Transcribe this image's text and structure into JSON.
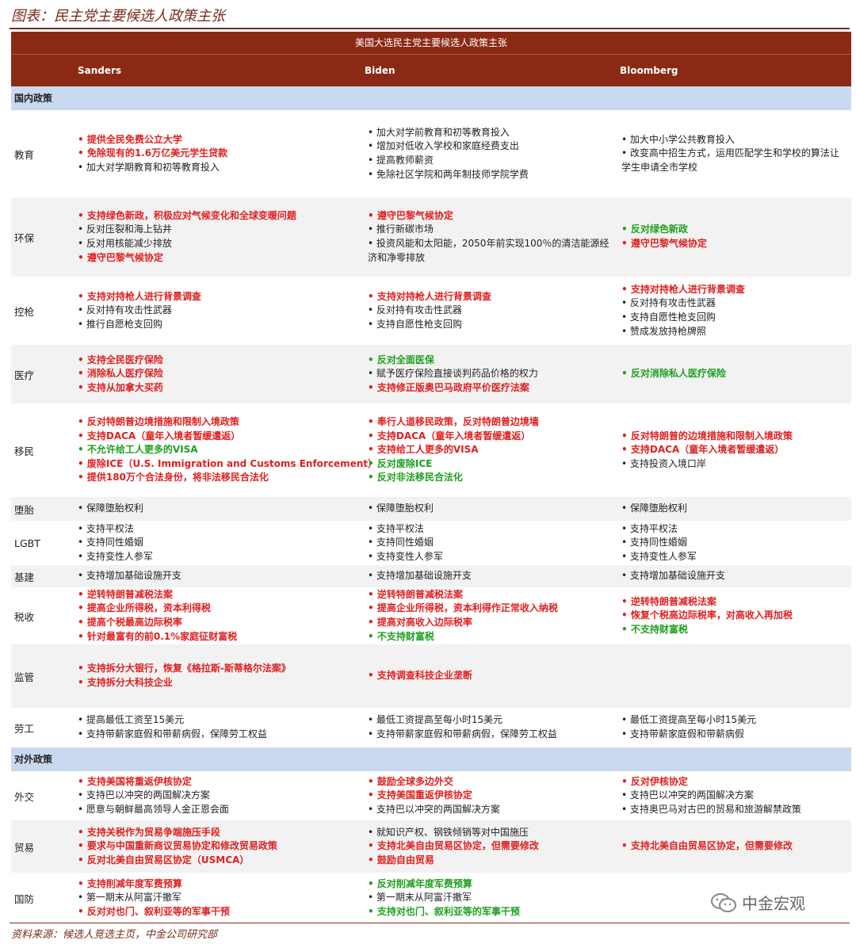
{
  "figure_title": "图表：民主党主要候选人政策主张",
  "table_title": "美国大选民主党主要候选人政策主张",
  "columns": [
    "Sanders",
    "Biden",
    "Bloomberg"
  ],
  "sections": [
    {
      "name": "国内政策",
      "rows": [
        {
          "label": "教育",
          "h": 110,
          "cells": [
            [
              {
                "t": "提供全民免费公立大学",
                "c": "red"
              },
              {
                "t": "免除现有的1.6万亿美元学生贷款",
                "c": "red"
              },
              {
                "t": "加大对学期教育和初等教育投入",
                "c": "black"
              }
            ],
            [
              {
                "t": "加大对学前教育和初等教育投入",
                "c": "black"
              },
              {
                "t": "增加对低收入学校和家庭经费支出",
                "c": "black"
              },
              {
                "t": "提高教师薪资",
                "c": "black"
              },
              {
                "t": "免除社区学院和两年制技师学院学费",
                "c": "black"
              }
            ],
            [
              {
                "t": "加大中小学公共教育投入",
                "c": "black"
              },
              {
                "t": "改变高中招生方式，运用匹配学生和学校的算法让学生申请全市学校",
                "c": "black",
                "w": 1
              }
            ]
          ]
        },
        {
          "label": "环保",
          "h": 100,
          "cells": [
            [
              {
                "t": "支持绿色新政，积极应对气候变化和全球变暖问题",
                "c": "red"
              },
              {
                "t": "反对压裂和海上钻井",
                "c": "black"
              },
              {
                "t": "反对用核能减少排放",
                "c": "black"
              },
              {
                "t": "遵守巴黎气候协定",
                "c": "red"
              }
            ],
            [
              {
                "t": "遵守巴黎气候协定",
                "c": "red"
              },
              {
                "t": "推行新碳市场",
                "c": "black"
              },
              {
                "t": "投资风能和太阳能，2050年前实现100％的清洁能源经济和净零排放",
                "c": "black",
                "w": 1
              }
            ],
            [
              {
                "t": "反对绿色新政",
                "c": "green"
              },
              {
                "t": "遵守巴黎气候协定",
                "c": "red"
              }
            ]
          ]
        },
        {
          "label": "控枪",
          "h": 86,
          "cells": [
            [
              {
                "t": "支持对持枪人进行背景调查",
                "c": "red"
              },
              {
                "t": "反对持有攻击性武器",
                "c": "black"
              },
              {
                "t": "推行自愿枪支回购",
                "c": "black"
              }
            ],
            [
              {
                "t": "支持对持枪人进行背景调查",
                "c": "red"
              },
              {
                "t": "反对持有攻击性武器",
                "c": "black"
              },
              {
                "t": "支持自愿性枪支回购",
                "c": "black"
              }
            ],
            [
              {
                "t": "支持对持枪人进行背景调查",
                "c": "red"
              },
              {
                "t": "反对持有攻击性武器",
                "c": "black"
              },
              {
                "t": "支持自愿性枪支回购",
                "c": "black"
              },
              {
                "t": "赞成发放持枪牌照",
                "c": "black"
              }
            ]
          ]
        },
        {
          "label": "医疗",
          "h": 74,
          "cells": [
            [
              {
                "t": "支持全民医疗保险",
                "c": "red"
              },
              {
                "t": "消除私人医疗保险",
                "c": "red"
              },
              {
                "t": "支持从加拿大买药",
                "c": "red"
              }
            ],
            [
              {
                "t": "反对全面医保",
                "c": "green"
              },
              {
                "t": "赋予医疗保险直接谈判药品价格的权力",
                "c": "black"
              },
              {
                "t": "支持修正版奥巴马政府平价医疗法案",
                "c": "red"
              }
            ],
            [
              {
                "t": "反对消除私人医疗保险",
                "c": "green"
              }
            ]
          ]
        },
        {
          "label": "移民",
          "h": 118,
          "cells": [
            [
              {
                "t": "反对特朗普边境措施和限制入境政策",
                "c": "red"
              },
              {
                "t": "支持DACA（童年入境者暂缓遣返）",
                "c": "red"
              },
              {
                "t": "不允许给工人更多的VISA",
                "c": "green"
              },
              {
                "t": "废除ICE（U.S. Immigration and Customs Enforcement）",
                "c": "red"
              },
              {
                "t": "提供180万个合法身份，将非法移民合法化",
                "c": "red"
              }
            ],
            [
              {
                "t": "奉行人道移民政策，反对特朗普边境墙",
                "c": "red"
              },
              {
                "t": "支持DACA（童年入境者暂缓遣返）",
                "c": "red"
              },
              {
                "t": "支持给工人更多的VISA",
                "c": "red"
              },
              {
                "t": "反对废除ICE",
                "c": "green"
              },
              {
                "t": "反对非法移民合法化",
                "c": "green"
              }
            ],
            [
              {
                "t": "反对特朗普的边境措施和限制入境政策",
                "c": "red"
              },
              {
                "t": "支持DACA（童年入境者暂缓遣返）",
                "c": "red"
              },
              {
                "t": "支持投资入境口岸",
                "c": "black"
              }
            ]
          ]
        },
        {
          "label": "堕胎",
          "h": 30,
          "cells": [
            [
              {
                "t": "保障堕胎权利",
                "c": "black"
              }
            ],
            [
              {
                "t": "保障堕胎权利",
                "c": "black"
              }
            ],
            [
              {
                "t": "保障堕胎权利",
                "c": "black"
              }
            ]
          ]
        },
        {
          "label": "LGBT",
          "h": 56,
          "cells": [
            [
              {
                "t": "支持平权法",
                "c": "black"
              },
              {
                "t": "支持同性婚姻",
                "c": "black"
              },
              {
                "t": "支持变性人参军",
                "c": "black"
              }
            ],
            [
              {
                "t": "支持平权法",
                "c": "black"
              },
              {
                "t": "支持同性婚姻",
                "c": "black"
              },
              {
                "t": "支持变性人参军",
                "c": "black"
              }
            ],
            [
              {
                "t": "支持平权法",
                "c": "black"
              },
              {
                "t": "支持同性婚姻",
                "c": "black"
              },
              {
                "t": "支持变性人参军",
                "c": "black"
              }
            ]
          ]
        },
        {
          "label": "基建",
          "h": 28,
          "cells": [
            [
              {
                "t": "支持增加基础设施开支",
                "c": "black"
              }
            ],
            [
              {
                "t": "支持增加基础设施开支",
                "c": "black"
              }
            ],
            [
              {
                "t": "支持增加基础设施开支",
                "c": "black"
              }
            ]
          ]
        },
        {
          "label": "税收",
          "h": 72,
          "cells": [
            [
              {
                "t": "逆转特朗普减税法案",
                "c": "red"
              },
              {
                "t": "提高企业所得税，资本利得税",
                "c": "red"
              },
              {
                "t": "提高个税最高边际税率",
                "c": "red"
              },
              {
                "t": "针对最富有的前0.1%家庭征财富税",
                "c": "red"
              }
            ],
            [
              {
                "t": "逆转特朗普减税法案",
                "c": "red"
              },
              {
                "t": "提高企业所得税，资本利得作正常收入纳税",
                "c": "red"
              },
              {
                "t": "提高对高收入边际税率",
                "c": "red"
              },
              {
                "t": "不支持财富税",
                "c": "green"
              }
            ],
            [
              {
                "t": "逆转特朗普减税法案",
                "c": "red"
              },
              {
                "t": "恢复个税高边际税率，对高收入再加税",
                "c": "red"
              },
              {
                "t": "不支持财富税",
                "c": "green"
              }
            ]
          ]
        },
        {
          "label": "监管",
          "h": 80,
          "cells": [
            [
              {
                "t": "支持拆分大银行，恢复《格拉斯-斯蒂格尔法案》",
                "c": "red"
              },
              {
                "t": "支持拆分大科技企业",
                "c": "red"
              }
            ],
            [
              {
                "t": "支持调查科技企业垄断",
                "c": "red"
              }
            ],
            []
          ]
        },
        {
          "label": "劳工",
          "h": 50,
          "cells": [
            [
              {
                "t": "提高最低工资至15美元",
                "c": "black"
              },
              {
                "t": "支持带薪家庭假和带薪病假，保障劳工权益",
                "c": "black"
              }
            ],
            [
              {
                "t": "最低工资提高至每小时15美元",
                "c": "black"
              },
              {
                "t": "支持带薪家庭假和带薪病假，保障劳工权益",
                "c": "black"
              }
            ],
            [
              {
                "t": "最低工资提高至每小时15美元",
                "c": "black"
              },
              {
                "t": "支持带薪家庭假和带薪病假",
                "c": "black"
              }
            ]
          ]
        }
      ]
    },
    {
      "name": "对外政策",
      "rows": [
        {
          "label": "外交",
          "h": 62,
          "cells": [
            [
              {
                "t": "支持美国将重返伊核协定",
                "c": "red"
              },
              {
                "t": "支持巴以冲突的两国解决方案",
                "c": "black"
              },
              {
                "t": "愿意与朝鲜最高领导人金正恩会面",
                "c": "black"
              }
            ],
            [
              {
                "t": "鼓励全球多边外交",
                "c": "red"
              },
              {
                "t": "支持美国重返伊核协定",
                "c": "red"
              },
              {
                "t": "支持巴以冲突的两国解决方案",
                "c": "black"
              }
            ],
            [
              {
                "t": "反对伊核协定",
                "c": "red"
              },
              {
                "t": "支持巴以冲突的两国解决方案",
                "c": "black"
              },
              {
                "t": "支持奥巴马对古巴的贸易和旅游解禁政策",
                "c": "black"
              }
            ]
          ]
        },
        {
          "label": "贸易",
          "h": 66,
          "cells": [
            [
              {
                "t": "支持关税作为贸易争端施压手段",
                "c": "red"
              },
              {
                "t": "要求与中国重新商议贸易协定和修改贸易政策",
                "c": "red"
              },
              {
                "t": "反对北美自由贸易区协定（USMCA）",
                "c": "red"
              }
            ],
            [
              {
                "t": "就知识产权、钢铁倾销等对中国施压",
                "c": "black"
              },
              {
                "t": "支持北美自由贸易区协定，但需要修改",
                "c": "red"
              },
              {
                "t": "鼓励自由贸易",
                "c": "red"
              }
            ],
            [
              {
                "t": "支持北美自由贸易区协定，但需要修改",
                "c": "red"
              }
            ]
          ]
        },
        {
          "label": "国防",
          "h": 64,
          "cells": [
            [
              {
                "t": "支持削减年度军费预算",
                "c": "red"
              },
              {
                "t": "第一期末从阿富汗撤军",
                "c": "black"
              },
              {
                "t": "反对对也门、叙利亚等的军事干预",
                "c": "red"
              }
            ],
            [
              {
                "t": "反对削减年度军费预算",
                "c": "green"
              },
              {
                "t": "第一期末从阿富汗撤军",
                "c": "black"
              },
              {
                "t": "支持对也门、叙利亚等的军事干预",
                "c": "green"
              }
            ],
            []
          ]
        }
      ]
    }
  ],
  "source": "资料来源：候选人竞选主页，中金公司研究部",
  "watermark": "中金宏观",
  "colors": {
    "header": "#8b2a14",
    "section": "#c9d9ef",
    "red": "#e02020",
    "green": "#1ea01e"
  },
  "watermark_icon": "wechat-icon"
}
